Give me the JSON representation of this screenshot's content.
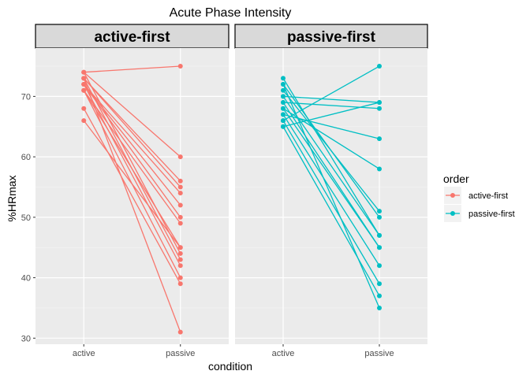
{
  "chart_data": {
    "type": "line",
    "title": "Acute Phase Intensity",
    "xlabel": "condition",
    "ylabel": "%HRmax",
    "categories": [
      "active",
      "passive"
    ],
    "ylim": [
      29,
      78
    ],
    "yticks": [
      30,
      40,
      50,
      60,
      70
    ],
    "grid": true,
    "legend": {
      "title": "order",
      "position": "right",
      "entries": [
        {
          "name": "active-first",
          "color": "#F8766D"
        },
        {
          "name": "passive-first",
          "color": "#00BFC4"
        }
      ]
    },
    "panels": [
      {
        "strip": "active-first",
        "color": "#F8766D",
        "pairs": [
          [
            74,
            75
          ],
          [
            74,
            60
          ],
          [
            73,
            56
          ],
          [
            73,
            55
          ],
          [
            72,
            54
          ],
          [
            72,
            52
          ],
          [
            72,
            50
          ],
          [
            71,
            49
          ],
          [
            71,
            45
          ],
          [
            74,
            44
          ],
          [
            73,
            43
          ],
          [
            72,
            42
          ],
          [
            71,
            40
          ],
          [
            68,
            39
          ],
          [
            66,
            45
          ],
          [
            73,
            31
          ]
        ]
      },
      {
        "strip": "passive-first",
        "color": "#00BFC4",
        "pairs": [
          [
            66,
            75
          ],
          [
            70,
            69
          ],
          [
            69,
            68
          ],
          [
            67,
            63
          ],
          [
            68,
            58
          ],
          [
            71,
            51
          ],
          [
            72,
            50
          ],
          [
            73,
            47
          ],
          [
            70,
            47
          ],
          [
            69,
            45
          ],
          [
            68,
            45
          ],
          [
            67,
            42
          ],
          [
            66,
            39
          ],
          [
            65,
            37
          ],
          [
            72,
            35
          ],
          [
            65,
            69
          ]
        ]
      }
    ]
  }
}
